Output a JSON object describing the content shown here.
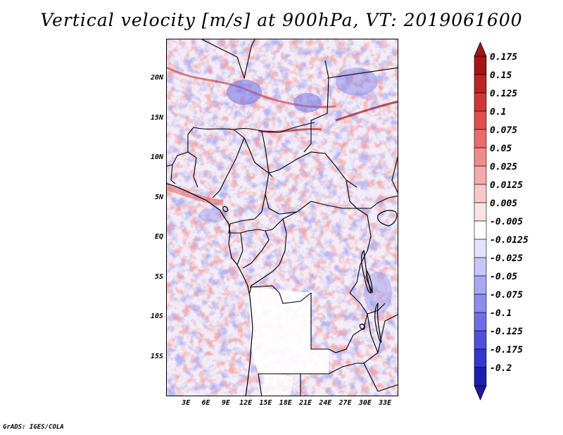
{
  "title": "Vertical velocity [m/s] at 900hPa, VT: 2019061600",
  "footer": "GrADS: IGES/COLA",
  "map": {
    "lon_range": [
      0,
      35
    ],
    "lat_range": [
      -20,
      25
    ],
    "lat_labels": [
      {
        "text": "20N",
        "lat": 20
      },
      {
        "text": "15N",
        "lat": 15
      },
      {
        "text": "10N",
        "lat": 10
      },
      {
        "text": "5N",
        "lat": 5
      },
      {
        "text": "EQ",
        "lat": 0
      },
      {
        "text": "5S",
        "lat": -5
      },
      {
        "text": "10S",
        "lat": -10
      },
      {
        "text": "15S",
        "lat": -15
      }
    ],
    "lon_labels": [
      {
        "text": "3E",
        "lon": 3
      },
      {
        "text": "6E",
        "lon": 6
      },
      {
        "text": "9E",
        "lon": 9
      },
      {
        "text": "12E",
        "lon": 12
      },
      {
        "text": "15E",
        "lon": 15
      },
      {
        "text": "18E",
        "lon": 18
      },
      {
        "text": "21E",
        "lon": 21
      },
      {
        "text": "24E",
        "lon": 24
      },
      {
        "text": "27E",
        "lon": 27
      },
      {
        "text": "30E",
        "lon": 30
      },
      {
        "text": "33E",
        "lon": 33
      }
    ]
  },
  "colorbar": {
    "levels": [
      {
        "label": "0.175",
        "color": "#a11616"
      },
      {
        "label": "0.15",
        "color": "#b82525"
      },
      {
        "label": "0.125",
        "color": "#cc3838"
      },
      {
        "label": "0.1",
        "color": "#db5050"
      },
      {
        "label": "0.075",
        "color": "#e66e6e"
      },
      {
        "label": "0.05",
        "color": "#ee8c8c"
      },
      {
        "label": "0.025",
        "color": "#f4aaaa"
      },
      {
        "label": "0.0125",
        "color": "#f8c8c8"
      },
      {
        "label": "0.005",
        "color": "#fbe2e2"
      },
      {
        "label": "-0.005",
        "color": "#ffffff"
      },
      {
        "label": "-0.0125",
        "color": "#e2e2fb"
      },
      {
        "label": "-0.025",
        "color": "#c6c6f8"
      },
      {
        "label": "-0.05",
        "color": "#a8a8f2"
      },
      {
        "label": "-0.075",
        "color": "#8c8cec"
      },
      {
        "label": "-0.1",
        "color": "#6e6ee4"
      },
      {
        "label": "-0.125",
        "color": "#5050d8"
      },
      {
        "label": "-0.175",
        "color": "#3636c8"
      },
      {
        "label": "-0.2",
        "color": "#1e1eaa"
      }
    ],
    "top_color": "#a11616",
    "bottom_color": "#1a1a9a"
  }
}
